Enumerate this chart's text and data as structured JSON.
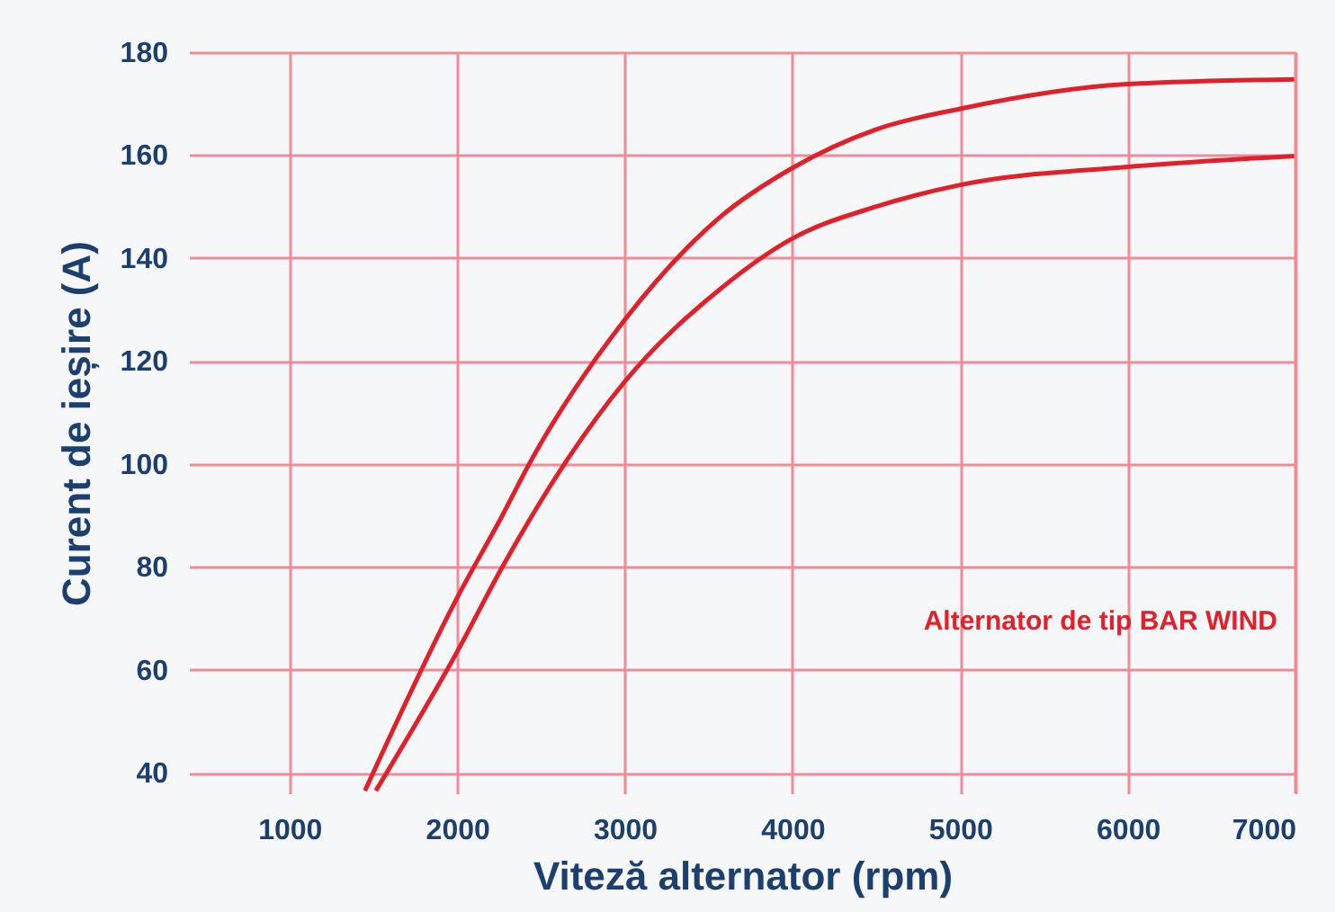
{
  "chart_data": {
    "type": "line",
    "xlabel": "Viteză alternator (rpm)",
    "ylabel": "Curent de ieșire (A)",
    "xlim": [
      400,
      7000
    ],
    "xticks": [
      1000,
      2000,
      3000,
      4000,
      5000,
      6000,
      7000
    ],
    "ylim": [
      36,
      180
    ],
    "yticks": [
      40,
      60,
      80,
      100,
      120,
      140,
      160,
      180
    ],
    "grid": true,
    "legend": false,
    "line_style": "solid",
    "marker": "none",
    "annotations": [
      "Alternator de tip BAR WIND"
    ],
    "series": [
      {
        "color": "#e0202a",
        "x": [
          1450,
          2000,
          2270,
          2430,
          3000,
          3570,
          4000,
          4500,
          5000,
          6000,
          7000
        ],
        "values": [
          36.5,
          74,
          90,
          100,
          128,
          148,
          157.5,
          165,
          169,
          173.8,
          174.7
        ]
      },
      {
        "color": "#e0202a",
        "x": [
          1515,
          2000,
          2270,
          2640,
          3000,
          3570,
          4000,
          4500,
          5000,
          6000,
          7000
        ],
        "values": [
          36.5,
          63.5,
          80,
          100,
          116,
          134,
          143.8,
          150,
          154.2,
          157.7,
          159.8
        ]
      }
    ]
  }
}
